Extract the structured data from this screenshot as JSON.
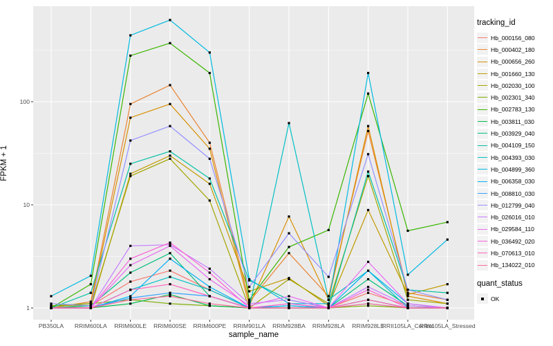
{
  "figure": {
    "xlabel": "sample_name",
    "ylabel": "FPKM + 1",
    "legend_title": "tracking_id",
    "quant_legend_title": "quant_status",
    "quant_ok_label": "OK"
  },
  "colors": {
    "panel_background": "#EBEBEB",
    "gridline": "#FFFFFF",
    "legend_key_background": "#F2F2F2",
    "tick_text": "#4D4D4D",
    "point_marker": "#000000"
  },
  "chart_data": {
    "type": "line",
    "title": "",
    "xlabel": "sample_name",
    "ylabel": "FPKM + 1",
    "y_scale": "log10",
    "y_ticks": [
      1,
      10,
      100
    ],
    "ylim": [
      0.75,
      800
    ],
    "grid": true,
    "legend_position": "right",
    "legend_title": "tracking_id",
    "point_marker": "black filled square (quant_status OK)",
    "x_categories": [
      "PB350LA",
      "RRIM600LA",
      "RRIM600LE",
      "RRIM600SE",
      "RRIM600PE",
      "RRIM901LA",
      "RRIM928BA",
      "RRIM928LA",
      "RRIM928LE",
      "RRII105LA_Control",
      "RRII105LA_Stressed"
    ],
    "series": [
      {
        "name": "Hb_000156_080",
        "color": "#F8766D",
        "values": [
          1.0,
          1.05,
          1.8,
          2.3,
          1.5,
          1.0,
          1.1,
          1.0,
          1.4,
          1.05,
          1.0
        ]
      },
      {
        "name": "Hb_000402_180",
        "color": "#EA8331",
        "values": [
          1.0,
          1.15,
          95,
          145,
          40,
          1.15,
          3.4,
          1.3,
          52,
          1.4,
          1.2
        ]
      },
      {
        "name": "Hb_000656_260",
        "color": "#D89000",
        "values": [
          1.05,
          1.1,
          70,
          95,
          35,
          1.05,
          7.7,
          1.2,
          58,
          1.3,
          1.1
        ]
      },
      {
        "name": "Hb_001660_130",
        "color": "#C09B00",
        "values": [
          1.0,
          1.0,
          20,
          30,
          16,
          1.45,
          1.95,
          1.05,
          8.9,
          1.35,
          1.7
        ]
      },
      {
        "name": "Hb_002030_100",
        "color": "#A3A500",
        "values": [
          1.05,
          1.05,
          19,
          28,
          11,
          1.0,
          1.9,
          1.1,
          19,
          1.2,
          1.1
        ]
      },
      {
        "name": "Hb_002301_340",
        "color": "#7CAE00",
        "values": [
          1.05,
          1.1,
          1.2,
          1.1,
          1.05,
          1.0,
          1.0,
          1.0,
          1.05,
          1.0,
          1.0
        ]
      },
      {
        "name": "Hb_002783_130",
        "color": "#39B600",
        "values": [
          1.0,
          1.7,
          280,
          370,
          190,
          1.2,
          3.9,
          5.7,
          120,
          5.6,
          6.8
        ]
      },
      {
        "name": "Hb_003811_030",
        "color": "#00BB4E",
        "values": [
          1.0,
          1.0,
          1.1,
          1.35,
          1.05,
          1.0,
          1.0,
          1.0,
          1.2,
          1.0,
          1.0
        ]
      },
      {
        "name": "Hb_003929_040",
        "color": "#00BF7D",
        "values": [
          1.0,
          1.05,
          2.2,
          3.4,
          1.3,
          1.0,
          1.05,
          1.0,
          1.9,
          1.05,
          1.0
        ]
      },
      {
        "name": "Hb_004109_150",
        "color": "#00C1A3",
        "values": [
          1.0,
          1.4,
          25,
          33,
          18,
          1.85,
          1.2,
          1.0,
          21,
          1.5,
          1.4
        ]
      },
      {
        "name": "Hb_004393_030",
        "color": "#00BFC4",
        "values": [
          1.0,
          1.0,
          1.5,
          2.0,
          1.5,
          1.0,
          62,
          1.2,
          2.3,
          1.0,
          1.0
        ]
      },
      {
        "name": "Hb_004899_360",
        "color": "#00BAE0",
        "values": [
          1.3,
          2.05,
          440,
          620,
          300,
          1.9,
          1.1,
          1.1,
          190,
          2.1,
          4.6
        ]
      },
      {
        "name": "Hb_006358_030",
        "color": "#00B0F6",
        "values": [
          1.0,
          1.0,
          1.3,
          3.0,
          1.6,
          1.0,
          1.05,
          1.0,
          2.3,
          1.1,
          1.0
        ]
      },
      {
        "name": "Hb_008810_030",
        "color": "#35A2FF",
        "values": [
          1.0,
          1.0,
          1.25,
          1.4,
          1.3,
          1.0,
          1.0,
          1.0,
          1.1,
          1.0,
          1.0
        ]
      },
      {
        "name": "Hb_012799_040",
        "color": "#9590FF",
        "values": [
          1.1,
          1.05,
          42,
          58,
          28,
          1.6,
          5.3,
          2.0,
          31,
          1.5,
          1.2
        ]
      },
      {
        "name": "Hb_026016_010",
        "color": "#C77CFF",
        "values": [
          1.0,
          1.0,
          4.0,
          4.1,
          2.4,
          1.1,
          1.2,
          1.0,
          1.6,
          1.05,
          1.0
        ]
      },
      {
        "name": "Hb_029584_110",
        "color": "#E76BF3",
        "values": [
          1.0,
          1.0,
          2.6,
          4.0,
          1.9,
          1.05,
          1.3,
          1.0,
          2.8,
          1.1,
          1.0
        ]
      },
      {
        "name": "Hb_036492_020",
        "color": "#FA62DB",
        "values": [
          1.0,
          1.0,
          3.0,
          4.3,
          2.2,
          1.0,
          1.1,
          1.0,
          1.5,
          1.0,
          1.0
        ]
      },
      {
        "name": "Hb_070613_010",
        "color": "#FF62BC",
        "values": [
          1.0,
          1.0,
          1.5,
          1.7,
          1.3,
          1.0,
          1.0,
          1.0,
          1.2,
          1.0,
          1.0
        ]
      },
      {
        "name": "Hb_134022_010",
        "color": "#FF6A98",
        "values": [
          1.0,
          1.0,
          1.2,
          1.3,
          1.1,
          1.0,
          1.0,
          1.0,
          1.1,
          1.0,
          1.0
        ]
      }
    ],
    "quant_status": {
      "label": "OK",
      "marker": "filled-square",
      "marker_color": "#000000"
    }
  }
}
